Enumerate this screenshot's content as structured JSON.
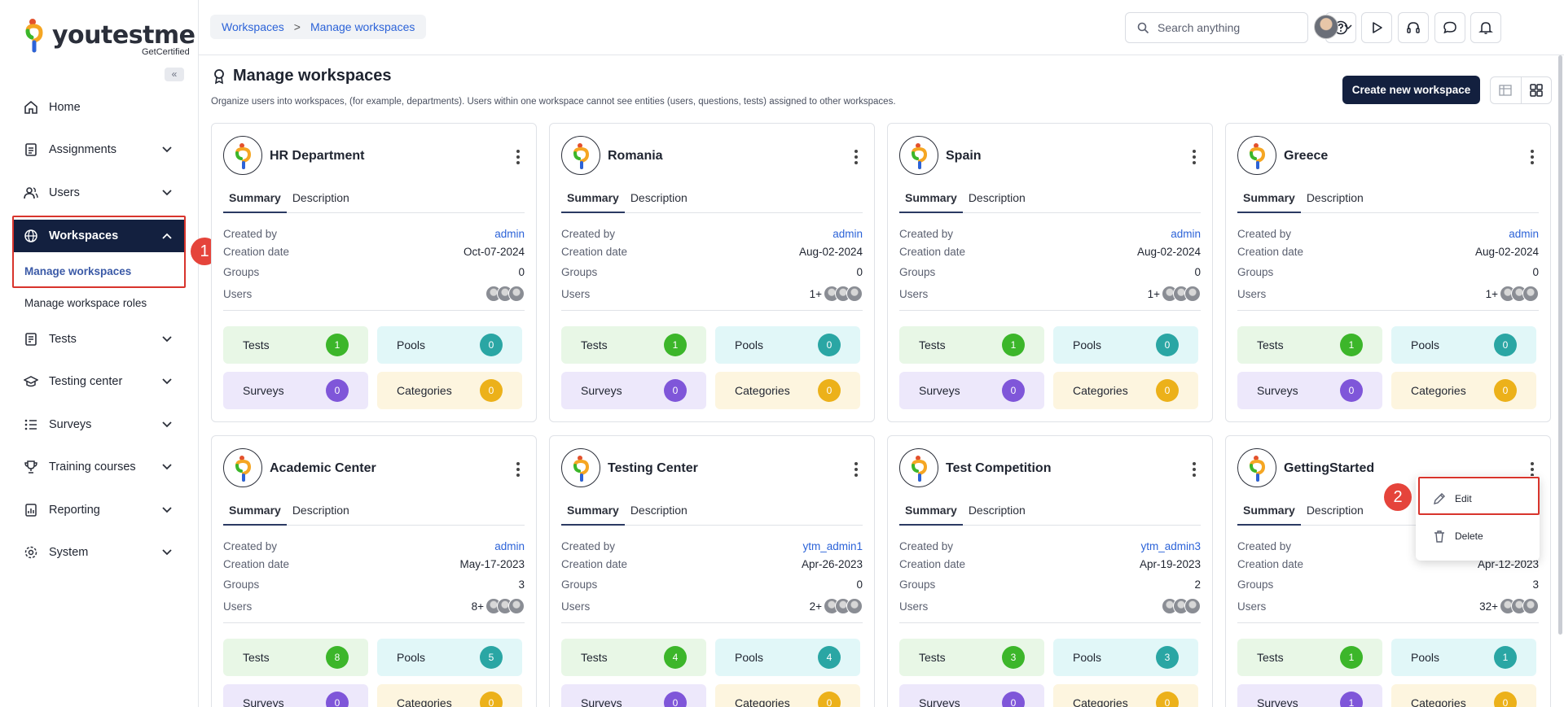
{
  "brand": {
    "name_a": "youtes",
    "name_b": "tme",
    "tagline": "GetCertified"
  },
  "sidebar": {
    "collapse_glyph": "«",
    "items": [
      {
        "label": "Home",
        "icon": "home-icon"
      },
      {
        "label": "Assignments",
        "icon": "assignment-icon"
      },
      {
        "label": "Users",
        "icon": "users-icon"
      },
      {
        "label": "Workspaces",
        "icon": "globe-icon"
      },
      {
        "label": "Tests",
        "icon": "tests-icon"
      },
      {
        "label": "Testing center",
        "icon": "testing-center-icon"
      },
      {
        "label": "Surveys",
        "icon": "surveys-icon"
      },
      {
        "label": "Training courses",
        "icon": "trophy-icon"
      },
      {
        "label": "Reporting",
        "icon": "reporting-icon"
      },
      {
        "label": "System",
        "icon": "gear-icon"
      }
    ],
    "sub_items": [
      "Manage workspaces",
      "Manage workspace roles"
    ]
  },
  "annotations": {
    "step1": "1",
    "step2": "2",
    "accent": "#e5443b"
  },
  "topbar": {
    "breadcrumb": [
      "Workspaces",
      "Manage workspaces"
    ],
    "breadcrumb_sep": ">",
    "search_placeholder": "Search anything"
  },
  "page": {
    "title": "Manage workspaces",
    "description": "Organize users into workspaces, (for example, departments). Users within one workspace cannot see entities (users, questions, tests) assigned to other workspaces.",
    "create_button": "Create new workspace"
  },
  "labels": {
    "summary": "Summary",
    "description": "Description",
    "created_by": "Created by",
    "creation_date": "Creation date",
    "groups": "Groups",
    "users": "Users",
    "tests": "Tests",
    "pools": "Pools",
    "surveys": "Surveys",
    "categories": "Categories"
  },
  "workspaces": [
    {
      "name": "HR Department",
      "created_by": "admin",
      "date": "Oct-07-2024",
      "groups": "0",
      "users_extra": "",
      "tests": "1",
      "pools": "0",
      "surveys": "0",
      "categories": "0"
    },
    {
      "name": "Romania",
      "created_by": "admin",
      "date": "Aug-02-2024",
      "groups": "0",
      "users_extra": "1+",
      "tests": "1",
      "pools": "0",
      "surveys": "0",
      "categories": "0"
    },
    {
      "name": "Spain",
      "created_by": "admin",
      "date": "Aug-02-2024",
      "groups": "0",
      "users_extra": "1+",
      "tests": "1",
      "pools": "0",
      "surveys": "0",
      "categories": "0"
    },
    {
      "name": "Greece",
      "created_by": "admin",
      "date": "Aug-02-2024",
      "groups": "0",
      "users_extra": "1+",
      "tests": "1",
      "pools": "0",
      "surveys": "0",
      "categories": "0"
    },
    {
      "name": "Academic Center",
      "created_by": "admin",
      "date": "May-17-2023",
      "groups": "3",
      "users_extra": "8+",
      "tests": "8",
      "pools": "5",
      "surveys": "0",
      "categories": "0"
    },
    {
      "name": "Testing Center",
      "created_by": "ytm_admin1",
      "date": "Apr-26-2023",
      "groups": "0",
      "users_extra": "2+",
      "tests": "4",
      "pools": "4",
      "surveys": "0",
      "categories": "0"
    },
    {
      "name": "Test Competition",
      "created_by": "ytm_admin3",
      "date": "Apr-19-2023",
      "groups": "2",
      "users_extra": "",
      "tests": "3",
      "pools": "3",
      "surveys": "0",
      "categories": "0"
    },
    {
      "name": "GettingStarted",
      "created_by": "",
      "date": "Apr-12-2023",
      "groups": "3",
      "users_extra": "32+",
      "tests": "1",
      "pools": "1",
      "surveys": "1",
      "categories": "0"
    }
  ],
  "dropdown": {
    "edit": "Edit",
    "delete": "Delete"
  }
}
